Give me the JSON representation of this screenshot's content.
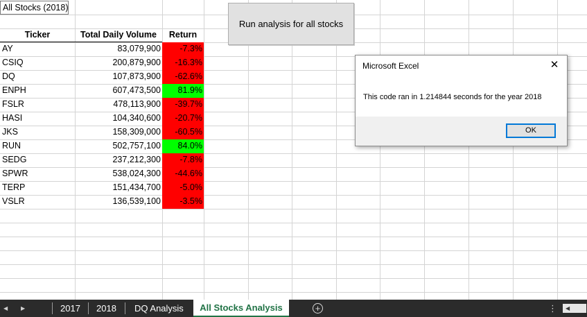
{
  "sheet": {
    "title": "All Stocks (2018)",
    "headers": {
      "ticker": "Ticker",
      "volume": "Total Daily Volume",
      "return": "Return"
    },
    "rows": [
      {
        "ticker": "AY",
        "volume": "83,079,900",
        "return": "-7.3%",
        "status": "negative"
      },
      {
        "ticker": "CSIQ",
        "volume": "200,879,900",
        "return": "-16.3%",
        "status": "negative"
      },
      {
        "ticker": "DQ",
        "volume": "107,873,900",
        "return": "-62.6%",
        "status": "negative"
      },
      {
        "ticker": "ENPH",
        "volume": "607,473,500",
        "return": "81.9%",
        "status": "positive"
      },
      {
        "ticker": "FSLR",
        "volume": "478,113,900",
        "return": "-39.7%",
        "status": "negative"
      },
      {
        "ticker": "HASI",
        "volume": "104,340,600",
        "return": "-20.7%",
        "status": "negative"
      },
      {
        "ticker": "JKS",
        "volume": "158,309,000",
        "return": "-60.5%",
        "status": "negative"
      },
      {
        "ticker": "RUN",
        "volume": "502,757,100",
        "return": "84.0%",
        "status": "positive"
      },
      {
        "ticker": "SEDG",
        "volume": "237,212,300",
        "return": "-7.8%",
        "status": "negative"
      },
      {
        "ticker": "SPWR",
        "volume": "538,024,300",
        "return": "-44.6%",
        "status": "negative"
      },
      {
        "ticker": "TERP",
        "volume": "151,434,700",
        "return": "-5.0%",
        "status": "negative"
      },
      {
        "ticker": "VSLR",
        "volume": "136,539,100",
        "return": "-3.5%",
        "status": "negative"
      }
    ]
  },
  "run_button": {
    "label": "Run analysis for all stocks"
  },
  "dialog": {
    "title": "Microsoft Excel",
    "message": "This code ran in 1.214844 seconds for the year 2018",
    "ok_label": "OK",
    "close_icon": "close-icon"
  },
  "tabs": {
    "items": [
      "2017",
      "2018",
      "DQ Analysis"
    ],
    "active": "All Stocks Analysis",
    "nav_prev_icon": "triangle-left-icon",
    "nav_next_icon": "triangle-right-icon",
    "add_icon": "plus-circle-icon",
    "options_icon": "vertical-ellipsis-icon"
  },
  "colors": {
    "positive": "#00ff00",
    "negative": "#ff0000",
    "grid": "#d4d4d4",
    "tabbar": "#2b2b2b",
    "active_tab_text": "#217346",
    "dialog_accent": "#0078d7"
  }
}
